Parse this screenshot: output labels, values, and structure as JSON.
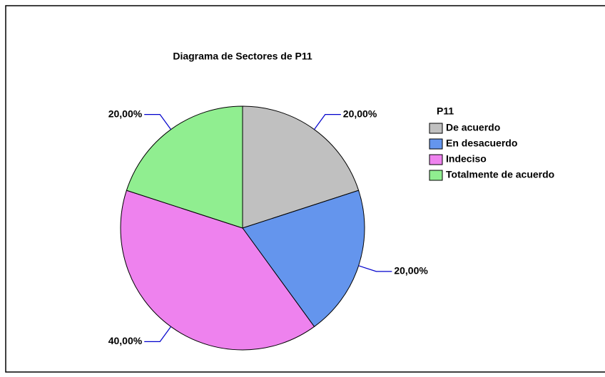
{
  "chart_data": {
    "type": "pie",
    "title": "Diagrama de Sectores de P11",
    "legend_title": "P11",
    "categories": [
      "De acuerdo",
      "En desacuerdo",
      "Indeciso",
      "Totalmente de acuerdo"
    ],
    "values": [
      20,
      20,
      40,
      20
    ],
    "value_labels": [
      "20,00%",
      "20,00%",
      "40,00%",
      "20,00%"
    ],
    "colors": [
      "#c0c0c0",
      "#6495ed",
      "#ee82ee",
      "#90ee90"
    ],
    "legend": "right"
  }
}
